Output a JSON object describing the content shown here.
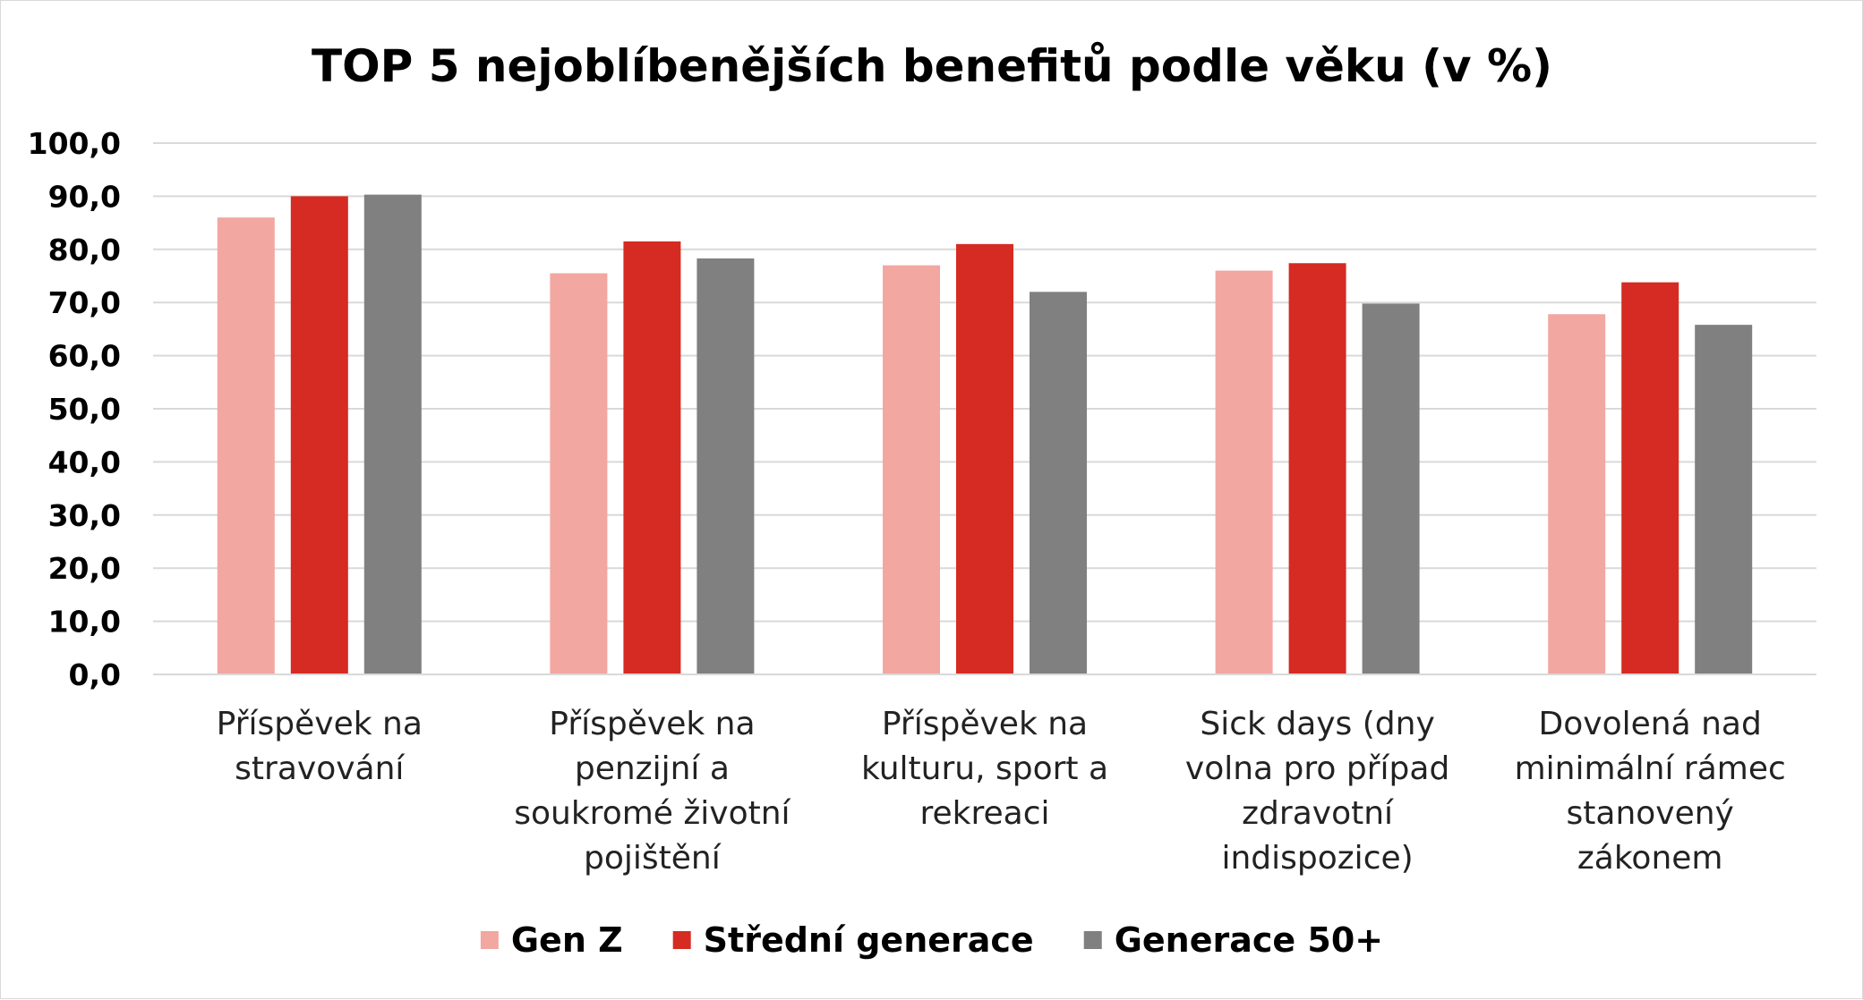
{
  "chart_data": {
    "type": "bar",
    "title": "TOP 5 nejoblíbenějších benefitů podle věku (v %)",
    "xlabel": "",
    "ylabel": "",
    "ylim": [
      0,
      100
    ],
    "ytick_values": [
      0,
      10,
      20,
      30,
      40,
      50,
      60,
      70,
      80,
      90,
      100
    ],
    "ytick_labels": [
      "0,0",
      "10,0",
      "20,0",
      "30,0",
      "40,0",
      "50,0",
      "60,0",
      "70,0",
      "80,0",
      "90,0",
      "100,0"
    ],
    "grid": true,
    "legend_position": "bottom",
    "categories": [
      [
        "Příspěvek na",
        "stravování"
      ],
      [
        "Příspěvek na",
        "penzijní a",
        "soukromé životní",
        "pojištění"
      ],
      [
        "Příspěvek na",
        "kulturu, sport a",
        "rekreaci"
      ],
      [
        "Sick days (dny",
        "volna pro případ",
        "zdravotní",
        "indispozice)"
      ],
      [
        "Dovolená nad",
        "minimální rámec",
        "stanovený",
        "zákonem"
      ]
    ],
    "series": [
      {
        "name": "Gen Z",
        "color": "#f2a7a1",
        "values": [
          86.0,
          75.5,
          77.0,
          76.0,
          67.8
        ]
      },
      {
        "name": "Střední generace",
        "color": "#d52b22",
        "values": [
          90.0,
          81.5,
          81.0,
          77.4,
          73.8
        ]
      },
      {
        "name": "Generace 50+",
        "color": "#808080",
        "values": [
          90.3,
          78.3,
          72.0,
          69.8,
          65.8
        ]
      }
    ]
  }
}
